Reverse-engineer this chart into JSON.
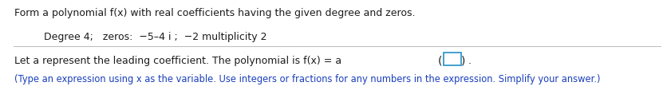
{
  "title_text": "Form a polynomial f(x) with real coefficients having the given degree and zeros.",
  "degree_text": "Degree 4;   zeros:  −5–4 i ;  −2 multiplicity 2",
  "line3_text": "Let a represent the leading coefficient. The polynomial is f(x) = a",
  "line3_after": ".",
  "line4_text": "(Type an expression using x as the variable. Use integers or fractions for any numbers in the expression. Simplify your answer.)",
  "background_color": "#ffffff",
  "text_color_dark": "#1c1c1c",
  "text_color_blue": "#1a3fbb",
  "divider_color": "#bbbbbb",
  "font_size_title": 9.0,
  "font_size_body": 9.0,
  "font_size_blue": 8.3,
  "box_edge_color": "#3399cc"
}
